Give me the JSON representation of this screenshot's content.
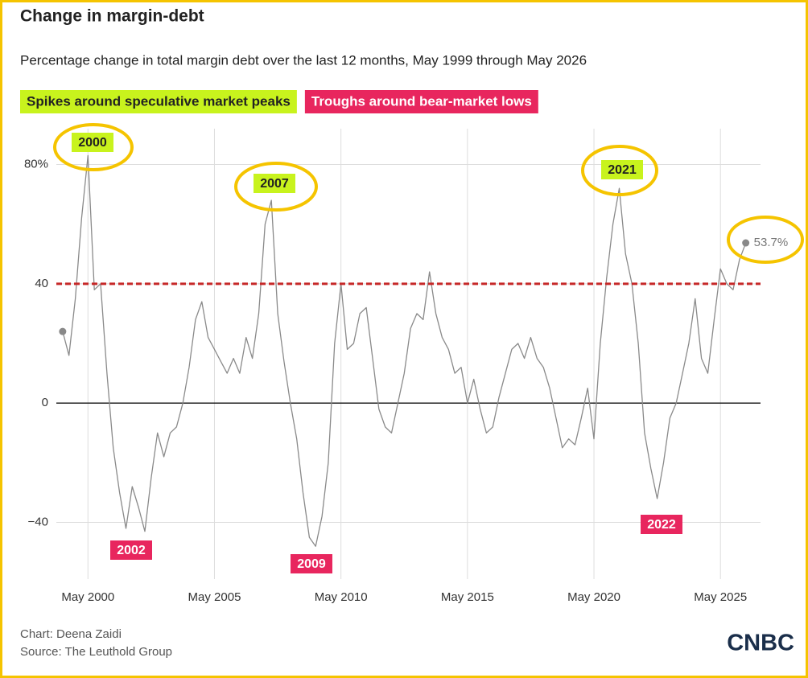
{
  "chart_data": {
    "type": "line",
    "title": "Change in margin-debt",
    "subtitle": "Percentage change in total margin debt over the last 12 months, May 1999 through May 2026",
    "legend_items": [
      {
        "label": "Spikes around speculative market peaks",
        "color": "#c8f31d"
      },
      {
        "label": "Troughs around bear-market lows",
        "color": "#e8265e"
      }
    ],
    "annotations": [
      {
        "text": "2000",
        "kind": "peak"
      },
      {
        "text": "2007",
        "kind": "peak"
      },
      {
        "text": "2021",
        "kind": "peak"
      },
      {
        "text": "2002",
        "kind": "trough"
      },
      {
        "text": "2009",
        "kind": "trough"
      },
      {
        "text": "2022",
        "kind": "trough"
      }
    ],
    "x": [
      "1999-05",
      "1999-08",
      "1999-11",
      "2000-02",
      "2000-05",
      "2000-08",
      "2000-11",
      "2001-02",
      "2001-05",
      "2001-08",
      "2001-11",
      "2002-02",
      "2002-05",
      "2002-08",
      "2002-11",
      "2003-02",
      "2003-05",
      "2003-08",
      "2003-11",
      "2004-02",
      "2004-05",
      "2004-08",
      "2004-11",
      "2005-02",
      "2005-05",
      "2005-08",
      "2005-11",
      "2006-02",
      "2006-05",
      "2006-08",
      "2006-11",
      "2007-02",
      "2007-05",
      "2007-08",
      "2007-11",
      "2008-02",
      "2008-05",
      "2008-08",
      "2008-11",
      "2009-02",
      "2009-05",
      "2009-08",
      "2009-11",
      "2010-02",
      "2010-05",
      "2010-08",
      "2010-11",
      "2011-02",
      "2011-05",
      "2011-08",
      "2011-11",
      "2012-02",
      "2012-05",
      "2012-08",
      "2012-11",
      "2013-02",
      "2013-05",
      "2013-08",
      "2013-11",
      "2014-02",
      "2014-05",
      "2014-08",
      "2014-11",
      "2015-02",
      "2015-05",
      "2015-08",
      "2015-11",
      "2016-02",
      "2016-05",
      "2016-08",
      "2016-11",
      "2017-02",
      "2017-05",
      "2017-08",
      "2017-11",
      "2018-02",
      "2018-05",
      "2018-08",
      "2018-11",
      "2019-02",
      "2019-05",
      "2019-08",
      "2019-11",
      "2020-02",
      "2020-05",
      "2020-08",
      "2020-11",
      "2021-02",
      "2021-05",
      "2021-08",
      "2021-11",
      "2022-02",
      "2022-05",
      "2022-08",
      "2022-11",
      "2023-02",
      "2023-05",
      "2023-08",
      "2023-11",
      "2024-02",
      "2024-05",
      "2024-08",
      "2024-11",
      "2025-02",
      "2025-05",
      "2025-08",
      "2025-11",
      "2026-02",
      "2026-05"
    ],
    "series": [
      {
        "name": "Margin debt change",
        "color": "#8a8a8a",
        "values": [
          24,
          16,
          35,
          62,
          83,
          38,
          40,
          10,
          -15,
          -30,
          -42,
          -28,
          -35,
          -43,
          -25,
          -10,
          -18,
          -10,
          -8,
          0,
          12,
          28,
          34,
          22,
          18,
          14,
          10,
          15,
          10,
          22,
          15,
          30,
          60,
          68,
          30,
          14,
          0,
          -12,
          -30,
          -45,
          -48,
          -38,
          -20,
          20,
          40,
          18,
          20,
          30,
          32,
          15,
          -2,
          -8,
          -10,
          0,
          10,
          25,
          30,
          28,
          44,
          30,
          22,
          18,
          10,
          12,
          0,
          8,
          -2,
          -10,
          -8,
          2,
          10,
          18,
          20,
          15,
          22,
          15,
          12,
          5,
          -5,
          -15,
          -12,
          -14,
          -5,
          5,
          -12,
          20,
          42,
          60,
          72,
          50,
          40,
          20,
          -10,
          -22,
          -32,
          -20,
          -5,
          0,
          10,
          20,
          35,
          15,
          10,
          28,
          45,
          40,
          38,
          48,
          53.7
        ]
      }
    ],
    "last_value_label": "53.7%",
    "reference_line": {
      "value": 40,
      "color": "#c62828"
    },
    "xlim": [
      "1999-02",
      "2026-12"
    ],
    "xticks": [
      {
        "value": "2000-05",
        "label": "May 2000"
      },
      {
        "value": "2005-05",
        "label": "May 2005"
      },
      {
        "value": "2010-05",
        "label": "May 2010"
      },
      {
        "value": "2015-05",
        "label": "May 2015"
      },
      {
        "value": "2020-05",
        "label": "May 2020"
      },
      {
        "value": "2025-05",
        "label": "May 2025"
      }
    ],
    "ylim": [
      -59,
      92
    ],
    "yticks": [
      {
        "value": 80,
        "label": "80%"
      },
      40,
      0,
      {
        "value": -40,
        "label": "−40"
      }
    ],
    "grid": true,
    "credit": "Chart: Deena Zaidi",
    "source": "Source: The Leuthold Group",
    "logo": "CNBC"
  }
}
